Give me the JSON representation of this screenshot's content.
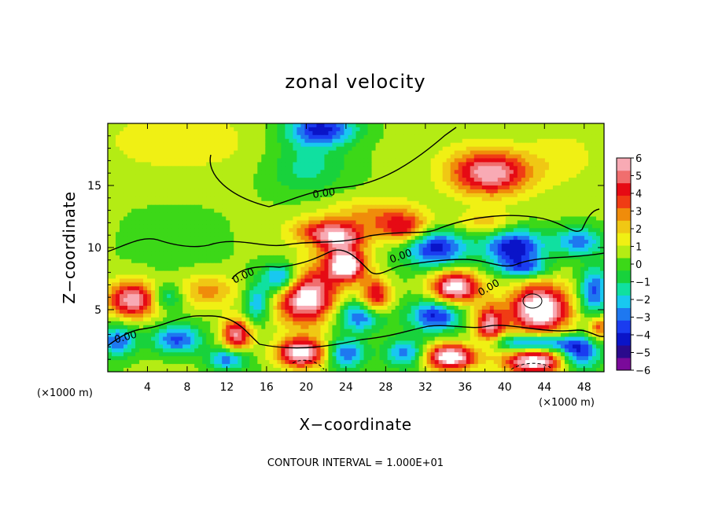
{
  "chart_data": {
    "type": "heatmap",
    "title": "zonal velocity",
    "xlabel": "X−coordinate",
    "ylabel": "Z−coordinate",
    "x_unit": "(×1000 m)",
    "y_unit": "(×1000 m)",
    "xlim": [
      0,
      50
    ],
    "ylim": [
      0,
      20
    ],
    "x_ticks": [
      "4",
      "8",
      "12",
      "16",
      "20",
      "24",
      "28",
      "32",
      "36",
      "40",
      "44",
      "48"
    ],
    "y_ticks": [
      "5",
      "10",
      "15"
    ],
    "x_tick_values": [
      4,
      8,
      12,
      16,
      20,
      24,
      28,
      32,
      36,
      40,
      44,
      48
    ],
    "y_tick_values": [
      5,
      10,
      15
    ],
    "contour_labels": [
      "0.00",
      "0.00",
      "0.00",
      "0.00",
      "0.00"
    ],
    "footer": "CONTOUR INTERVAL = 1.000E+01",
    "colorbar": {
      "ticks": [
        "6",
        "5",
        "4",
        "3",
        "2",
        "1",
        "0",
        "−1",
        "−2",
        "−3",
        "−4",
        "−5",
        "−6"
      ],
      "range": [
        -6,
        6
      ],
      "colors": [
        "#7a0a9a",
        "#2a0a8c",
        "#0a14c8",
        "#1a3cf0",
        "#1e78f0",
        "#18c8f0",
        "#10e0a0",
        "#18d23c",
        "#3cd818",
        "#b4ec14",
        "#f0f014",
        "#f0c814",
        "#f08c0a",
        "#f03c14",
        "#e60a14",
        "#f06e6e",
        "#f8aab4"
      ]
    },
    "blobs": [
      {
        "x": 8,
        "z": 18.5,
        "sx": 14,
        "sz": 3,
        "v": 0.8
      },
      {
        "x": 20,
        "z": 16.5,
        "sx": 4,
        "sz": 2.2,
        "v": -1.8
      },
      {
        "x": 21.5,
        "z": 19.5,
        "sx": 3.5,
        "sz": 1.3,
        "v": -4.5
      },
      {
        "x": 38.5,
        "z": 16,
        "sx": 4,
        "sz": 1.8,
        "v": 5.5
      },
      {
        "x": 46,
        "z": 17.5,
        "sx": 4,
        "sz": 2.5,
        "v": 1.2
      },
      {
        "x": 27,
        "z": 12.5,
        "sx": 5,
        "sz": 1.5,
        "v": 2.2
      },
      {
        "x": 2.5,
        "z": 5.8,
        "sx": 2.5,
        "sz": 1.5,
        "v": 5.5
      },
      {
        "x": 1,
        "z": 2.5,
        "sx": 2,
        "sz": 1.3,
        "v": -3.5
      },
      {
        "x": 7,
        "z": 2.6,
        "sx": 2.5,
        "sz": 1.2,
        "v": -4
      },
      {
        "x": 6,
        "z": 6,
        "sx": 1.5,
        "sz": 1,
        "v": -2.5
      },
      {
        "x": 10,
        "z": 6.5,
        "sx": 3,
        "sz": 1.3,
        "v": 2.5
      },
      {
        "x": 13,
        "z": 3,
        "sx": 1.5,
        "sz": 1.3,
        "v": 5
      },
      {
        "x": 12,
        "z": 1,
        "sx": 2,
        "sz": 0.9,
        "v": -3.5
      },
      {
        "x": 20,
        "z": 6,
        "sx": 3,
        "sz": 2.2,
        "v": 6.5
      },
      {
        "x": 17.5,
        "z": 7.5,
        "sx": 2,
        "sz": 1.3,
        "v": -4.5
      },
      {
        "x": 15,
        "z": 5.5,
        "sx": 1.3,
        "sz": 1.5,
        "v": -3
      },
      {
        "x": 24,
        "z": 8.5,
        "sx": 2,
        "sz": 1.2,
        "v": 6.5
      },
      {
        "x": 27,
        "z": 6,
        "sx": 1.5,
        "sz": 1.5,
        "v": 4.5
      },
      {
        "x": 25.5,
        "z": 4.5,
        "sx": 2.5,
        "sz": 1.2,
        "v": -4
      },
      {
        "x": 21.5,
        "z": 11.3,
        "sx": 3,
        "sz": 1,
        "v": 3
      },
      {
        "x": 23.5,
        "z": 10.5,
        "sx": 2.5,
        "sz": 1.2,
        "v": 4
      },
      {
        "x": 19.5,
        "z": 1.5,
        "sx": 2.5,
        "sz": 1.2,
        "v": 6.5
      },
      {
        "x": 24,
        "z": 1.5,
        "sx": 2,
        "sz": 1.2,
        "v": -3.5
      },
      {
        "x": 33,
        "z": 10,
        "sx": 3,
        "sz": 1.5,
        "v": -4.5
      },
      {
        "x": 30,
        "z": 11.5,
        "sx": 2.5,
        "sz": 1.2,
        "v": 3.5
      },
      {
        "x": 35,
        "z": 6.8,
        "sx": 2.5,
        "sz": 1.3,
        "v": 6.5
      },
      {
        "x": 33,
        "z": 4.5,
        "sx": 2.5,
        "sz": 1.3,
        "v": -4.5
      },
      {
        "x": 34.5,
        "z": 1.2,
        "sx": 2.5,
        "sz": 1,
        "v": 6.5
      },
      {
        "x": 30,
        "z": 1.5,
        "sx": 2,
        "sz": 1.2,
        "v": -3.5
      },
      {
        "x": 38.5,
        "z": 3.8,
        "sx": 1.5,
        "sz": 1.5,
        "v": 5
      },
      {
        "x": 43.5,
        "z": 5,
        "sx": 3,
        "sz": 2,
        "v": 7
      },
      {
        "x": 42,
        "z": 8.3,
        "sx": 2.5,
        "sz": 0.8,
        "v": -3
      },
      {
        "x": 41,
        "z": 10,
        "sx": 3,
        "sz": 1.5,
        "v": -5
      },
      {
        "x": 47.5,
        "z": 10.5,
        "sx": 2.5,
        "sz": 1.2,
        "v": -3.5
      },
      {
        "x": 38,
        "z": 12,
        "sx": 3,
        "sz": 1,
        "v": 2
      },
      {
        "x": 49,
        "z": 6.5,
        "sx": 1.5,
        "sz": 2,
        "v": -4
      },
      {
        "x": 49.5,
        "z": 3.5,
        "sx": 1,
        "sz": 1,
        "v": 3.5
      },
      {
        "x": 43,
        "z": 0.8,
        "sx": 3,
        "sz": 1,
        "v": 6.5
      },
      {
        "x": 43,
        "z": 2.3,
        "sx": 4,
        "sz": 0.7,
        "v": -4.5
      },
      {
        "x": 47.5,
        "z": 1.5,
        "sx": 2,
        "sz": 1.2,
        "v": -4
      }
    ]
  }
}
